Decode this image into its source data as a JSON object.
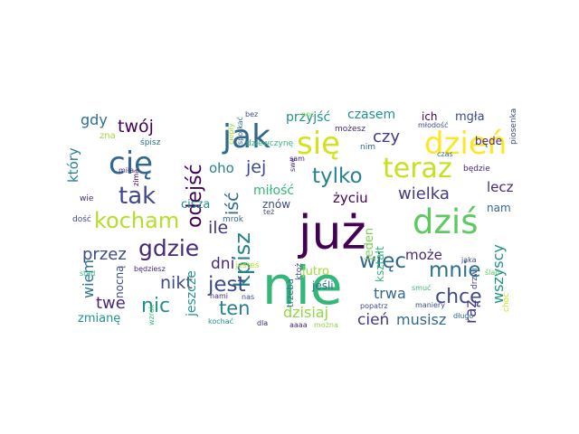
{
  "wordcloud": {
    "words": [
      {
        "text": "nie",
        "color": "#35b779"
      },
      {
        "text": "już",
        "color": "#440154"
      },
      {
        "text": "dziś",
        "color": "#5ec962"
      },
      {
        "text": "dzień",
        "color": "#fde725"
      },
      {
        "text": "teraz",
        "color": "#c8e020"
      },
      {
        "text": "się",
        "color": "#d2e21b"
      },
      {
        "text": "jak",
        "color": "#31688e"
      },
      {
        "text": "cię",
        "color": "#31688e"
      },
      {
        "text": "kocham",
        "color": "#b5de2b"
      },
      {
        "text": "gdzie",
        "color": "#482878"
      },
      {
        "text": "tak",
        "color": "#3e4a89"
      },
      {
        "text": "kpisz",
        "color": "#26828e"
      },
      {
        "text": "odejść",
        "color": "#440154"
      },
      {
        "text": "tylko",
        "color": "#26828e"
      },
      {
        "text": "mnie",
        "color": "#2c728e"
      },
      {
        "text": "więc",
        "color": "#31688e"
      },
      {
        "text": "chcę",
        "color": "#3e4a89"
      },
      {
        "text": "jest",
        "color": "#3e4a89"
      },
      {
        "text": "nic",
        "color": "#21918c"
      },
      {
        "text": "twój",
        "color": "#440154"
      },
      {
        "text": "jej",
        "color": "#3e4a89"
      },
      {
        "text": "wielka",
        "color": "#443983"
      },
      {
        "text": "ten",
        "color": "#26828e"
      },
      {
        "text": "nikt",
        "color": "#3e4a89"
      },
      {
        "text": "ile",
        "color": "#443983"
      },
      {
        "text": "iść",
        "color": "#31688e"
      },
      {
        "text": "czy",
        "color": "#443983"
      },
      {
        "text": "oho",
        "color": "#26828e"
      },
      {
        "text": "przez",
        "color": "#3e4a89"
      },
      {
        "text": "twe",
        "color": "#482878"
      },
      {
        "text": "wiem",
        "color": "#2c728e"
      },
      {
        "text": "cień",
        "color": "#443983"
      },
      {
        "text": "musisz",
        "color": "#31688e"
      },
      {
        "text": "raz",
        "color": "#443983"
      },
      {
        "text": "trwa",
        "color": "#31688e"
      },
      {
        "text": "może",
        "color": "#482878"
      },
      {
        "text": "dni",
        "color": "#482878"
      },
      {
        "text": "dzisiaj",
        "color": "#90d743"
      },
      {
        "text": "miłość",
        "color": "#35b779"
      },
      {
        "text": "gdy",
        "color": "#2c728e"
      },
      {
        "text": "który",
        "color": "#26828e"
      },
      {
        "text": "czasem",
        "color": "#21918c"
      },
      {
        "text": "mgła",
        "color": "#3e4a89"
      },
      {
        "text": "przyjść",
        "color": "#21918c"
      },
      {
        "text": "lecz",
        "color": "#482878"
      },
      {
        "text": "wszyscy",
        "color": "#21918c"
      },
      {
        "text": "nam",
        "color": "#31688e"
      },
      {
        "text": "będe",
        "color": "#482878"
      },
      {
        "text": "życiu",
        "color": "#440154"
      },
      {
        "text": "ich",
        "color": "#440154"
      },
      {
        "text": "cisza",
        "color": "#21918c"
      },
      {
        "text": "jeszcze",
        "color": "#21918c"
      },
      {
        "text": "zmianę",
        "color": "#21918c"
      },
      {
        "text": "nocną",
        "color": "#3e4a89"
      },
      {
        "text": "jutro",
        "color": "#a0da39"
      },
      {
        "text": "jeden",
        "color": "#7ad151"
      },
      {
        "text": "kształt",
        "color": "#35b779"
      },
      {
        "text": "jeśli",
        "color": "#2c728e"
      },
      {
        "text": "znów",
        "color": "#3e4a89"
      },
      {
        "text": "zna",
        "color": "#a0da39"
      },
      {
        "text": "śpisz",
        "color": "#2c728e"
      },
      {
        "text": "dziewczynę",
        "color": "#35b779"
      },
      {
        "text": "bez",
        "color": "#3e4a89"
      },
      {
        "text": "można",
        "color": "#90d743"
      },
      {
        "text": "ciepły",
        "color": "#a0da39"
      },
      {
        "text": "spotkać",
        "color": "#31688e"
      },
      {
        "text": "sam",
        "color": "#482878"
      },
      {
        "text": "noc",
        "color": "#7ad151"
      },
      {
        "text": "możesz",
        "color": "#482878"
      },
      {
        "text": "czas",
        "color": "#31688e"
      },
      {
        "text": "nim",
        "color": "#31688e"
      },
      {
        "text": "młodość",
        "color": "#3e4a89"
      },
      {
        "text": "piosenka",
        "color": "#3e4a89"
      },
      {
        "text": "swe",
        "color": "#482878"
      },
      {
        "text": "będzie",
        "color": "#482878"
      },
      {
        "text": "zima",
        "color": "#440154"
      },
      {
        "text": "miła",
        "color": "#482878"
      },
      {
        "text": "wie",
        "color": "#482878"
      },
      {
        "text": "dość",
        "color": "#3e4a89"
      },
      {
        "text": "mrok",
        "color": "#31688e"
      },
      {
        "text": "stąd",
        "color": "#35b779"
      },
      {
        "text": "będziesz",
        "color": "#482878"
      },
      {
        "text": "jesteś",
        "color": "#b5de2b"
      },
      {
        "text": "trzeba",
        "color": "#2c728e"
      },
      {
        "text": "nami",
        "color": "#482878"
      },
      {
        "text": "nas",
        "color": "#3e4a89"
      },
      {
        "text": "też",
        "color": "#3e4a89"
      },
      {
        "text": "ktoż",
        "color": "#3e4a89"
      },
      {
        "text": "popatrz",
        "color": "#3e4a89"
      },
      {
        "text": "smuć",
        "color": "#35b779"
      },
      {
        "text": "jaka",
        "color": "#3e4a89"
      },
      {
        "text": "ślad",
        "color": "#5ec962"
      },
      {
        "text": "drzwi",
        "color": "#3e4a89"
      },
      {
        "text": "długo",
        "color": "#31688e"
      },
      {
        "text": "choć",
        "color": "#d2e21b"
      },
      {
        "text": "maniery",
        "color": "#3e4a89"
      },
      {
        "text": "kochać",
        "color": "#21918c"
      },
      {
        "text": "dla",
        "color": "#482878"
      },
      {
        "text": "aaaa",
        "color": "#482878"
      },
      {
        "text": "wzrok",
        "color": "#35b779"
      }
    ]
  }
}
